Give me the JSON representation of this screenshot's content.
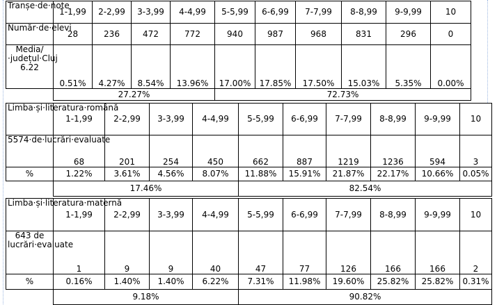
{
  "table1": {
    "header_label": "Tranșe·de·note",
    "categories": [
      "1-1,99",
      "2-2,99",
      "3-3,99",
      "4-4,99",
      "5-5,99",
      "6-6,99",
      "7-7,99",
      "8-8,99",
      "9-9,99",
      "10"
    ],
    "count_label": "Număr·de·elevi",
    "counts": [
      "28",
      "236",
      "472",
      "772",
      "940",
      "987",
      "968",
      "831",
      "296",
      "0"
    ],
    "pct_label": "Media/·județul·Cluj 6.22",
    "percents": [
      "0.51%",
      "4.27%",
      "8.54%",
      "13.96%",
      "17.00%",
      "17.85%",
      "17.50%",
      "15.03%",
      "5.35%",
      "0.00%"
    ],
    "summary": [
      "27.27%",
      "72.73%"
    ]
  },
  "table2": {
    "header_label": "Limba·și·literatura·română",
    "categories": [
      "1-1,99",
      "2-2,99",
      "3-3,99",
      "4-4,99",
      "5-5,99",
      "6-6,99",
      "7-7,99",
      "8-8,99",
      "9-9,99",
      "10"
    ],
    "count_label": "5574·de·lucrări·evaluate",
    "counts": [
      "68",
      "201",
      "254",
      "450",
      "662",
      "887",
      "1219",
      "1236",
      "594",
      "3"
    ],
    "pct_label": "%",
    "percents": [
      "1.22%",
      "3.61%",
      "4.56%",
      "8.07%",
      "11.88%",
      "15.91%",
      "21.87%",
      "22.17%",
      "10.66%",
      "0.05%"
    ],
    "summary": [
      "17.46%",
      "82.54%"
    ]
  },
  "table3": {
    "header_label": "Limba·și·literatura·maternă",
    "categories": [
      "1-1,99",
      "2-2,99",
      "3-3,99",
      "4-4,99",
      "5-5,99",
      "6-6,99",
      "7-7,99",
      "8-8,99",
      "9-9,99",
      "10"
    ],
    "count_label": "643 de lucrări·evaluate",
    "counts": [
      "1",
      "9",
      "9",
      "40",
      "47",
      "77",
      "126",
      "166",
      "166",
      "2"
    ],
    "pct_label": "%",
    "percents": [
      "0.16%",
      "1.40%",
      "1.40%",
      "6.22%",
      "7.31%",
      "11.98%",
      "19.60%",
      "25.82%",
      "25.82%",
      "0.31%"
    ],
    "summary": [
      "9.18%",
      "90.82%"
    ]
  }
}
